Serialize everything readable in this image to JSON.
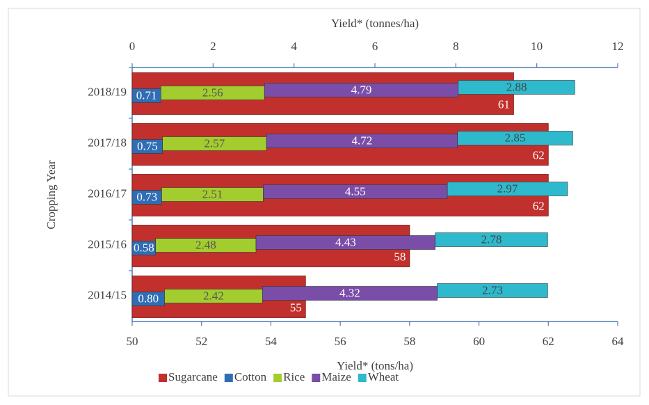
{
  "chart_data": {
    "type": "bar",
    "orientation": "horizontal",
    "categories": [
      "2018/19",
      "2017/18",
      "2016/17",
      "2015/16",
      "2014/15"
    ],
    "series": [
      {
        "name": "Sugarcane",
        "color": "#c1302c",
        "axis": "x",
        "values": [
          61,
          62,
          62,
          58,
          55
        ]
      },
      {
        "name": "Cotton",
        "color": "#2f6db4",
        "axis": "x2",
        "values": [
          0.71,
          0.75,
          0.73,
          0.58,
          0.8
        ],
        "value_labels": [
          "0.71",
          "0.75",
          "0.73",
          "0.58",
          "0.80"
        ]
      },
      {
        "name": "Rice",
        "color": "#a3cc2f",
        "axis": "x2",
        "values": [
          2.56,
          2.57,
          2.51,
          2.48,
          2.42
        ]
      },
      {
        "name": "Maize",
        "color": "#7a4ea8",
        "axis": "x2",
        "values": [
          4.79,
          4.72,
          4.55,
          4.43,
          4.32
        ]
      },
      {
        "name": "Wheat",
        "color": "#2fb9cd",
        "axis": "x2",
        "values": [
          2.88,
          2.85,
          2.97,
          2.78,
          2.73
        ]
      }
    ],
    "xlabel": "Yield* (tons/ha)",
    "x2label": "Yield* (tonnes/ha)",
    "ylabel": "Cropping Year",
    "xlim": [
      50,
      64
    ],
    "xticks": [
      50,
      52,
      54,
      56,
      58,
      60,
      62,
      64
    ],
    "x2lim": [
      0,
      12
    ],
    "x2ticks": [
      0,
      2,
      4,
      6,
      8,
      10,
      12
    ],
    "legend": "bottom"
  }
}
